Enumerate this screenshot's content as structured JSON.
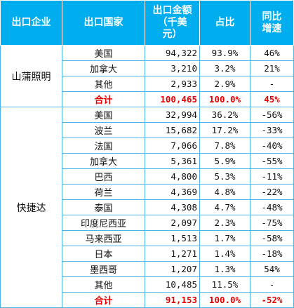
{
  "headers": [
    "出口企业",
    "出口国家",
    "出口金额（千美元）",
    "占比",
    "同比增速"
  ],
  "groups": [
    {
      "company": "山蒲照明",
      "rows": [
        {
          "country": "美国",
          "amount": "94,322",
          "share": "93.9%",
          "yoy": "46%"
        },
        {
          "country": "加拿大",
          "amount": "3,210",
          "share": "3.2%",
          "yoy": "21%"
        },
        {
          "country": "其他",
          "amount": "2,933",
          "share": "2.9%",
          "yoy": "-"
        }
      ],
      "total": {
        "country": "合计",
        "amount": "100,465",
        "share": "100.0%",
        "yoy": "45%"
      }
    },
    {
      "company": "快捷达",
      "rows": [
        {
          "country": "美国",
          "amount": "32,994",
          "share": "36.2%",
          "yoy": "-56%"
        },
        {
          "country": "波兰",
          "amount": "15,682",
          "share": "17.2%",
          "yoy": "-33%"
        },
        {
          "country": "法国",
          "amount": "7,066",
          "share": "7.8%",
          "yoy": "-40%"
        },
        {
          "country": "加拿大",
          "amount": "5,361",
          "share": "5.9%",
          "yoy": "-55%"
        },
        {
          "country": "巴西",
          "amount": "4,800",
          "share": "5.3%",
          "yoy": "-11%"
        },
        {
          "country": "荷兰",
          "amount": "4,369",
          "share": "4.8%",
          "yoy": "-22%"
        },
        {
          "country": "泰国",
          "amount": "4,308",
          "share": "4.7%",
          "yoy": "-48%"
        },
        {
          "country": "印度尼西亚",
          "amount": "2,097",
          "share": "2.3%",
          "yoy": "-75%"
        },
        {
          "country": "马来西亚",
          "amount": "1,513",
          "share": "1.7%",
          "yoy": "-58%"
        },
        {
          "country": "日本",
          "amount": "1,271",
          "share": "1.4%",
          "yoy": "-18%"
        },
        {
          "country": "墨西哥",
          "amount": "1,207",
          "share": "1.3%",
          "yoy": "54%"
        },
        {
          "country": "其他",
          "amount": "10,485",
          "share": "11.5%",
          "yoy": "-"
        }
      ],
      "total": {
        "country": "合计",
        "amount": "91,153",
        "share": "100.0%",
        "yoy": "-52%"
      }
    }
  ]
}
